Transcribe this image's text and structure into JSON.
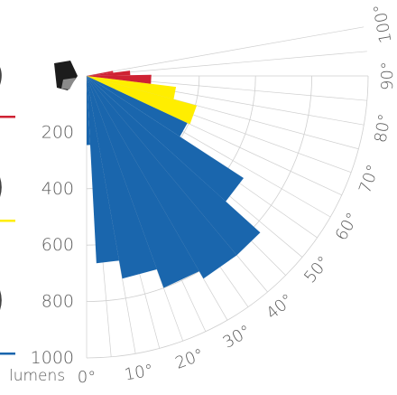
{
  "chart_data": {
    "type": "polar-bar",
    "title": "",
    "unit_label": "lumens",
    "radial_ticks": [
      "200",
      "400",
      "600",
      "800",
      "1000"
    ],
    "radial_tick_values": [
      200,
      400,
      600,
      800,
      1000
    ],
    "radial_range": [
      0,
      1000
    ],
    "angle_ticks": [
      "0°",
      "10°",
      "20°",
      "30°",
      "40°",
      "50°",
      "60°",
      "70°",
      "80°",
      "90°",
      "100°"
    ],
    "angle_tick_values": [
      0,
      10,
      20,
      30,
      40,
      50,
      60,
      70,
      80,
      90,
      100
    ],
    "angle_range": [
      0,
      100
    ],
    "grid": true,
    "colors": {
      "blue": "#1a66ad",
      "yellow": "#ffee00",
      "red": "#cf2233",
      "grid": "#cfcfcf",
      "text": "#5a5a5a"
    },
    "series": [
      {
        "color": "blue",
        "bars": [
          {
            "a0": 0,
            "a1": 3,
            "r": 245
          },
          {
            "a0": 3,
            "a1": 10,
            "r": 665
          },
          {
            "a0": 10,
            "a1": 20,
            "r": 730
          },
          {
            "a0": 20,
            "a1": 30,
            "r": 800
          },
          {
            "a0": 30,
            "a1": 40,
            "r": 830
          },
          {
            "a0": 40,
            "a1": 48,
            "r": 830
          },
          {
            "a0": 48,
            "a1": 57,
            "r": 665
          },
          {
            "a0": 57,
            "a1": 65,
            "r": 395
          }
        ]
      },
      {
        "color": "yellow",
        "bars": [
          {
            "a0": 65,
            "a1": 75,
            "r": 405
          },
          {
            "a0": 75,
            "a1": 83,
            "r": 320
          }
        ]
      },
      {
        "color": "red",
        "bars": [
          {
            "a0": 83,
            "a1": 91,
            "r": 230
          },
          {
            "a0": 91,
            "a1": 97,
            "r": 155
          },
          {
            "a0": 97,
            "a1": 101,
            "r": 95
          }
        ]
      }
    ]
  }
}
